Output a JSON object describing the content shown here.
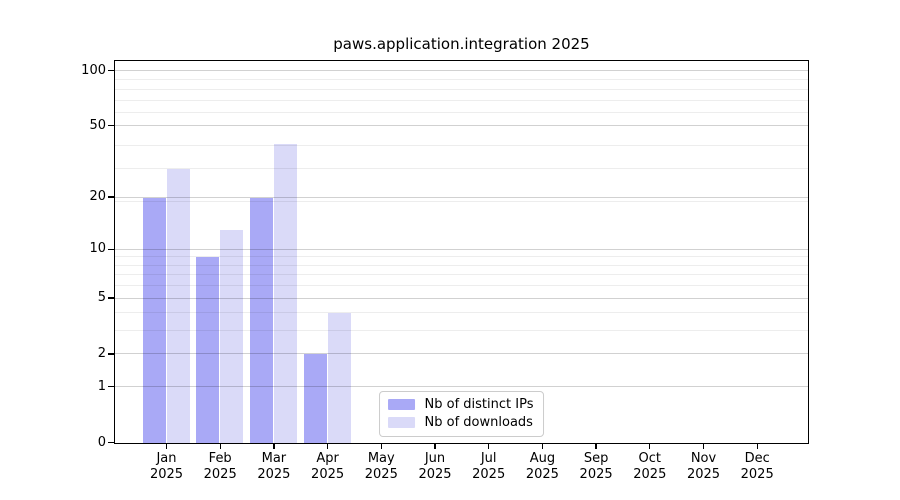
{
  "chart_data": {
    "type": "bar",
    "title": "paws.application.integration 2025",
    "categories": [
      "Jan 2025",
      "Feb 2025",
      "Mar 2025",
      "Apr 2025",
      "May 2025",
      "Jun 2025",
      "Jul 2025",
      "Aug 2025",
      "Sep 2025",
      "Oct 2025",
      "Nov 2025",
      "Dec 2025"
    ],
    "month_labels": [
      "Jan",
      "Feb",
      "Mar",
      "Apr",
      "May",
      "Jun",
      "Jul",
      "Aug",
      "Sep",
      "Oct",
      "Nov",
      "Dec"
    ],
    "year_label": "2025",
    "series": [
      {
        "name": "Nb of distinct IPs",
        "color": "#a9a9f6",
        "values": [
          20,
          9,
          20,
          2,
          0,
          0,
          0,
          0,
          0,
          0,
          0,
          0
        ]
      },
      {
        "name": "Nb of downloads",
        "color": "#dadaf8",
        "values": [
          29,
          13,
          40,
          4,
          0,
          0,
          0,
          0,
          0,
          0,
          0,
          0
        ]
      }
    ],
    "yaxis": {
      "scale": "log1p",
      "tick_labels": [
        0,
        1,
        2,
        5,
        10,
        20,
        50,
        100
      ],
      "minor_gridline_values": [
        3,
        4,
        6,
        7,
        8,
        9,
        19,
        29,
        39,
        59,
        69,
        79,
        89
      ],
      "max": 100
    },
    "xlabel": "",
    "ylabel": "",
    "grid": "on",
    "legend": {
      "position": "lower center"
    }
  },
  "colors": {
    "background": "#ffffff",
    "axis": "#000000",
    "major_grid": "#d1d1d1",
    "minor_grid": "#ededed",
    "legend_border": "#cccccc"
  }
}
